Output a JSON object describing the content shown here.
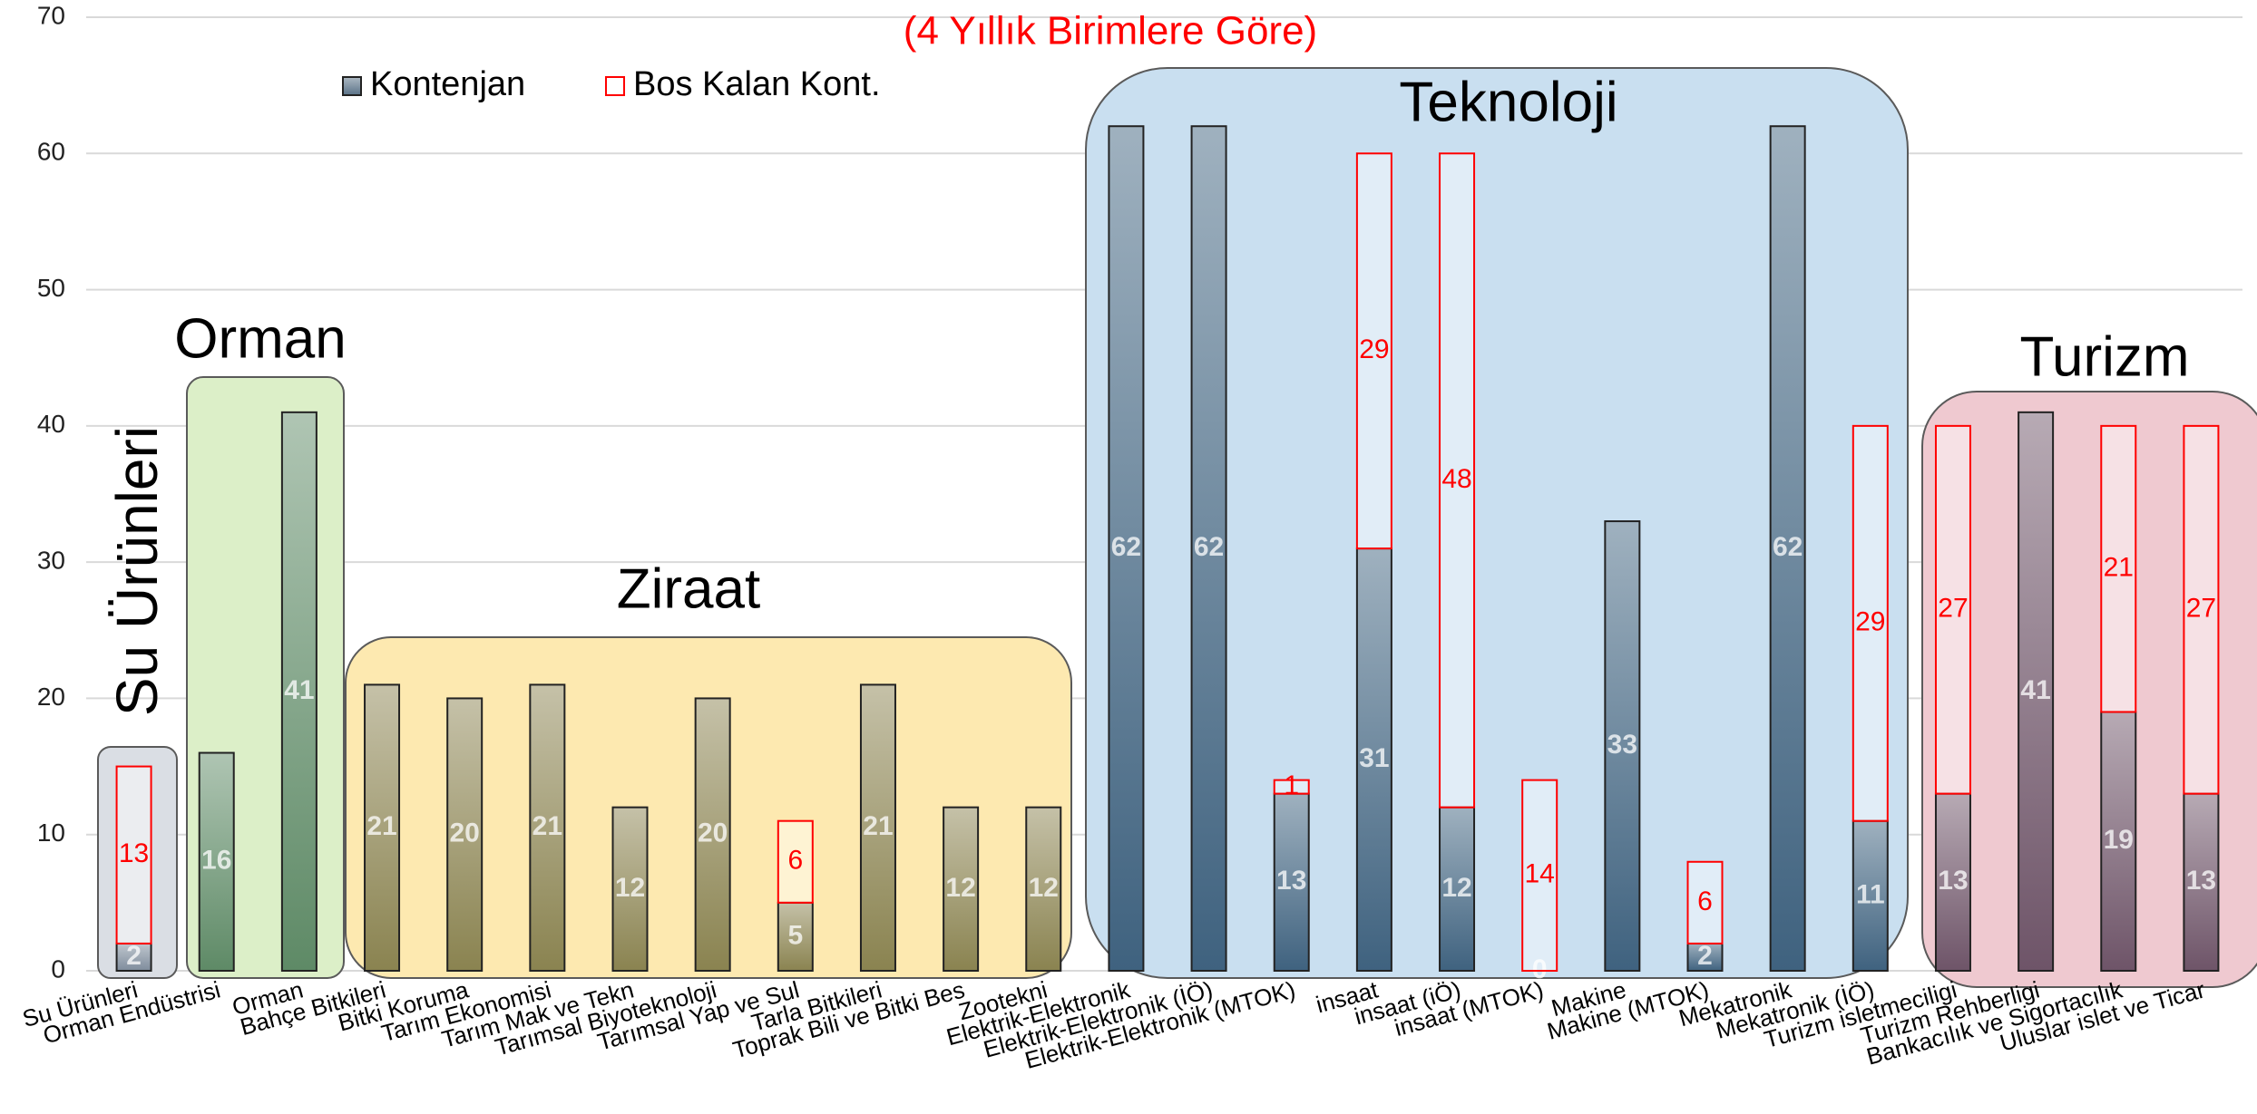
{
  "chart_data": {
    "type": "stacked_bar",
    "title": "(4 Yıllık Birimlere Göre)",
    "annotations": [
      "Su Ürünleri",
      "Orman",
      "Ziraat",
      "Teknoloji",
      "Turizm"
    ],
    "categories": [
      "Su Ürünleri",
      "Orman Endüstrisi",
      "Orman",
      "Bahçe Bitkileri",
      "Bitki Koruma",
      "Tarım Ekonomisi",
      "Tarım Mak ve Tekn",
      "Tarımsal Biyoteknoloji",
      "Tarımsal Yap ve Sul",
      "Tarla Bitkileri",
      "Toprak Bili ve Bitki Bes",
      "Zootekni",
      "Elektrik-Elektronik",
      "Elektrik-Elektronik (İÖ)",
      "Elektrik-Elektronik (MTOK)",
      "insaat",
      "insaat (iÖ)",
      "insaat (MTOK)",
      "Makine",
      "Makine (MTOK)",
      "Mekatronik",
      "Mekatronik (İÖ)",
      "Turizm isletmeciligi",
      "Turizm Rehberligi",
      "Bankacılık ve Sigortacılık",
      "Uluslar islet ve Ticar"
    ],
    "series": [
      {
        "name": "Kontenjan",
        "color": "#5a7287",
        "colors": [
          "#7e8c9c",
          "#5e8a66",
          "#5e8a66",
          "#8a8350",
          "#8a8350",
          "#8a8350",
          "#8a8350",
          "#8a8350",
          "#8a8350",
          "#8a8350",
          "#8a8350",
          "#8a8350",
          "#3f627f",
          "#3f627f",
          "#3f627f",
          "#3f627f",
          "#3f627f",
          "#3f627f",
          "#3f627f",
          "#3f627f",
          "#3f627f",
          "#3f627f",
          "#6e5468",
          "#6e5468",
          "#6e5468",
          "#6e5468"
        ],
        "values": [
          2,
          16,
          41,
          21,
          20,
          21,
          12,
          20,
          5,
          21,
          12,
          12,
          62,
          62,
          13,
          31,
          12,
          0,
          33,
          2,
          62,
          11,
          13,
          41,
          19,
          13
        ]
      },
      {
        "name": "Bos Kalan Kont.",
        "color": "#ff0000",
        "values": [
          13,
          null,
          null,
          null,
          null,
          null,
          null,
          null,
          6,
          null,
          null,
          null,
          null,
          null,
          1,
          29,
          48,
          14,
          null,
          6,
          null,
          29,
          27,
          null,
          21,
          27
        ]
      }
    ],
    "ylim": [
      0,
      70
    ],
    "yticks": [
      0,
      10,
      20,
      30,
      40,
      50,
      60,
      70
    ],
    "grid": true,
    "legend": "upper left"
  }
}
